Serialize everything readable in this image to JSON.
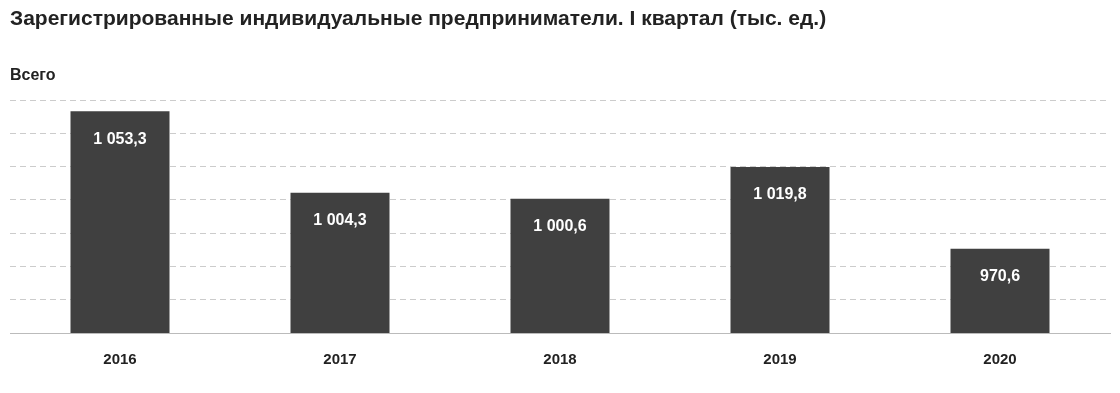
{
  "chart_data": {
    "type": "bar",
    "title": "Зарегистрированные индивидуальные предприниматели. I квартал  (тыс. ед.)",
    "subtitle": "Всего",
    "categories": [
      "2016",
      "2017",
      "2018",
      "2019",
      "2020"
    ],
    "values": [
      1053.3,
      1004.3,
      1000.6,
      1019.8,
      970.6
    ],
    "value_labels": [
      "1 053,3",
      "1 004,3",
      "1 000,6",
      "1 019,8",
      "970,6"
    ],
    "color": "#404040",
    "ylim": [
      920,
      1060
    ],
    "yticks": [
      {
        "value": 920,
        "label": null
      },
      {
        "value": 940,
        "label": null
      },
      {
        "value": 960,
        "label": null
      },
      {
        "value": 980,
        "label": null
      },
      {
        "value": 1000,
        "label": null
      },
      {
        "value": 1020,
        "label": null
      },
      {
        "value": 1040,
        "label": null
      },
      {
        "value": 1060,
        "label": null
      }
    ],
    "tick_labels": "x",
    "grid": "y",
    "legend": false
  }
}
